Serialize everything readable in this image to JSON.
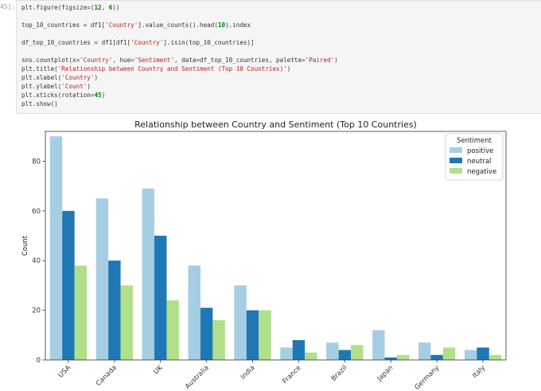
{
  "cell": {
    "prompt": "45]:",
    "code_lines": [
      [
        {
          "t": "plt.figure(figsize=("
        },
        {
          "t": "12",
          "c": "num"
        },
        {
          "t": ", "
        },
        {
          "t": "6",
          "c": "num"
        },
        {
          "t": "))"
        }
      ],
      [],
      [
        {
          "t": "top_10_countries = df1["
        },
        {
          "t": "'Country'",
          "c": "str"
        },
        {
          "t": "].value_counts().head("
        },
        {
          "t": "10",
          "c": "num"
        },
        {
          "t": ").index"
        }
      ],
      [],
      [
        {
          "t": "df_top_10_countries = df1[df1["
        },
        {
          "t": "'Country'",
          "c": "str"
        },
        {
          "t": "].isin(top_10_countries)]"
        }
      ],
      [],
      [
        {
          "t": "sns.countplot(x="
        },
        {
          "t": "'Country'",
          "c": "str"
        },
        {
          "t": ", hue="
        },
        {
          "t": "'Sentiment'",
          "c": "str"
        },
        {
          "t": ", data=df_top_10_countries, palette="
        },
        {
          "t": "'Paired'",
          "c": "str"
        },
        {
          "t": ")"
        }
      ],
      [
        {
          "t": "plt.title("
        },
        {
          "t": "'Relationship between Country and Sentiment (Top 10 Countries)'",
          "c": "str"
        },
        {
          "t": ")"
        }
      ],
      [
        {
          "t": "plt.xlabel("
        },
        {
          "t": "'Country'",
          "c": "str"
        },
        {
          "t": ")"
        }
      ],
      [
        {
          "t": "plt.ylabel("
        },
        {
          "t": "'Count'",
          "c": "str"
        },
        {
          "t": ")"
        }
      ],
      [
        {
          "t": "plt.xticks(rotation="
        },
        {
          "t": "45",
          "c": "num"
        },
        {
          "t": ")"
        }
      ],
      [
        {
          "t": "plt.show()"
        }
      ]
    ]
  },
  "chart_data": {
    "type": "bar",
    "title": "Relationship between Country and Sentiment (Top 10 Countries)",
    "xlabel": "",
    "ylabel": "Count",
    "categories": [
      "USA",
      "Canada",
      "UK",
      "Australia",
      "India",
      "France",
      "Brazil",
      "Japan",
      "Germany",
      "Italy"
    ],
    "series": [
      {
        "name": "positive",
        "color": "#a6cee3",
        "values": [
          90,
          65,
          69,
          38,
          30,
          5,
          7,
          12,
          7,
          4
        ]
      },
      {
        "name": "neutral",
        "color": "#1f78b4",
        "values": [
          60,
          40,
          50,
          21,
          20,
          8,
          4,
          1,
          2,
          5
        ]
      },
      {
        "name": "negative",
        "color": "#b2df8a",
        "values": [
          38,
          30,
          24,
          16,
          20,
          3,
          6,
          2,
          5,
          2
        ]
      }
    ],
    "ylim": [
      0,
      92
    ],
    "yticks": [
      0,
      20,
      40,
      60,
      80
    ],
    "legend": {
      "title": "Sentiment",
      "placement": "top-right"
    },
    "grid": false,
    "xtick_rotation": 45
  }
}
